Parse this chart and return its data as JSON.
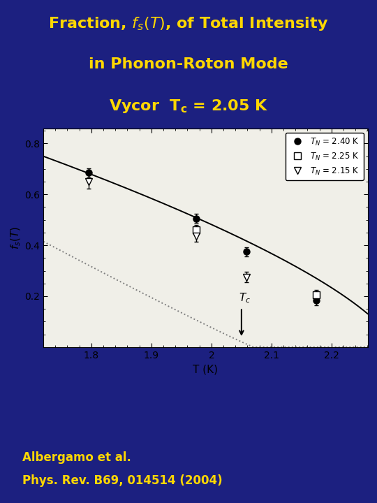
{
  "bg_color": "#1c2080",
  "plot_bg_color": "#f0efe8",
  "title_color": "#ffd700",
  "subtitle_color": "#ffd700",
  "ref_color": "#ffd700",
  "line_color": "#d4aa00",
  "xlabel": "T (K)",
  "ylabel": "f_s(T)",
  "xlim": [
    1.72,
    2.26
  ],
  "ylim": [
    0.0,
    0.86
  ],
  "xticks": [
    1.8,
    1.9,
    2.0,
    2.1,
    2.2
  ],
  "yticks": [
    0.2,
    0.4,
    0.6,
    0.8
  ],
  "Tc": 2.05,
  "data_solid_circle": [
    [
      1.795,
      0.685
    ],
    [
      1.975,
      0.505
    ],
    [
      2.058,
      0.375
    ],
    [
      2.175,
      0.183
    ]
  ],
  "err_solid_circle": [
    0.018,
    0.018,
    0.018,
    0.018
  ],
  "data_open_square": [
    [
      1.975,
      0.46
    ],
    [
      2.175,
      0.205
    ]
  ],
  "err_open_square": [
    0.02,
    0.02
  ],
  "data_open_triangle": [
    [
      1.795,
      0.65
    ],
    [
      1.975,
      0.435
    ],
    [
      2.058,
      0.275
    ]
  ],
  "err_open_triangle": [
    0.028,
    0.022,
    0.02
  ],
  "curve1_Tc": 2.305,
  "curve1_A": 0.75,
  "curve1_beta": 0.68,
  "curve2_Tc": 2.07,
  "curve2_A": 0.415,
  "curve2_beta": 1.05,
  "ref_line1": "Albergamo et al.",
  "ref_line2": "Phys. Rev. B69, 014514 (2004)"
}
